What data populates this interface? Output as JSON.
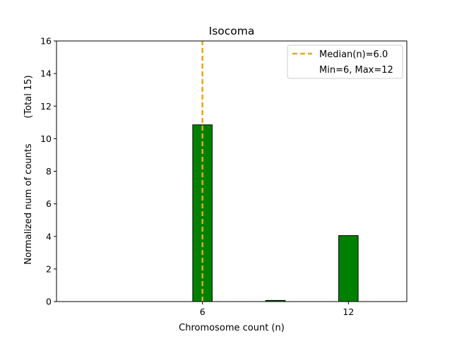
{
  "chart_data": {
    "type": "bar",
    "title": "Isocoma",
    "xlabel": "Chromosome count (n)",
    "ylabel": "Normalized num of counts",
    "ylabel_note": "(Total 15)",
    "xlim": [
      0,
      14.4
    ],
    "ylim": [
      0,
      16
    ],
    "xticks": [
      6,
      12
    ],
    "yticks": [
      0,
      2,
      4,
      6,
      8,
      10,
      12,
      14,
      16
    ],
    "bar_width": 0.8,
    "bars": [
      {
        "x": 6,
        "value": 10.85
      },
      {
        "x": 9,
        "value": 0.07
      },
      {
        "x": 12,
        "value": 4.05
      }
    ],
    "median_line": {
      "x": 6.0,
      "label": "Median(n)=6.0",
      "color": "#e6a817"
    },
    "range_text": "Min=6, Max=12",
    "bar_color": "#008000",
    "bar_edge_color": "#000000",
    "legend_position": "top-right",
    "grid": false
  }
}
